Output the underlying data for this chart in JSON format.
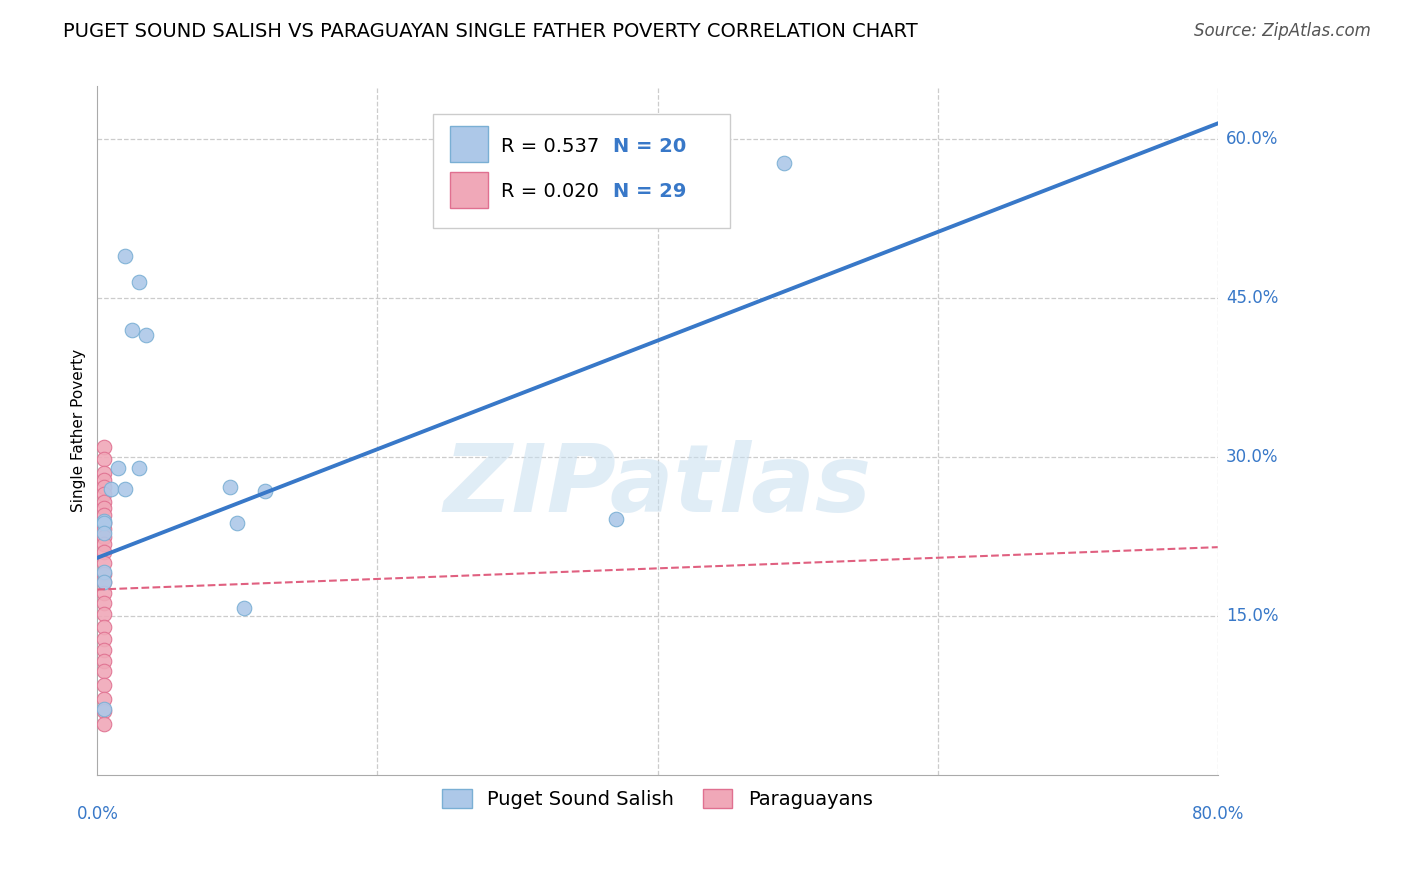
{
  "title": "PUGET SOUND SALISH VS PARAGUAYAN SINGLE FATHER POVERTY CORRELATION CHART",
  "source": "Source: ZipAtlas.com",
  "ylabel": "Single Father Poverty",
  "watermark": "ZIPatlas",
  "legend_blue_r": "R = 0.537",
  "legend_blue_n": "N = 20",
  "legend_pink_r": "R = 0.020",
  "legend_pink_n": "N = 29",
  "legend_blue_label": "Puget Sound Salish",
  "legend_pink_label": "Paraguayans",
  "xlim": [
    0.0,
    0.8
  ],
  "ylim": [
    0.0,
    0.65
  ],
  "ytick_vals": [
    0.15,
    0.3,
    0.45,
    0.6
  ],
  "ytick_labels": [
    "15.0%",
    "30.0%",
    "45.0%",
    "60.0%"
  ],
  "blue_dots_x": [
    0.02,
    0.03,
    0.025,
    0.035,
    0.03,
    0.015,
    0.01,
    0.02,
    0.005,
    0.095,
    0.12,
    0.1,
    0.49,
    0.005,
    0.005,
    0.105,
    0.37,
    0.005,
    0.005,
    0.005
  ],
  "blue_dots_y": [
    0.49,
    0.465,
    0.42,
    0.415,
    0.29,
    0.29,
    0.27,
    0.27,
    0.24,
    0.272,
    0.268,
    0.238,
    0.578,
    0.238,
    0.228,
    0.158,
    0.242,
    0.192,
    0.182,
    0.062
  ],
  "pink_dots_x": [
    0.005,
    0.005,
    0.005,
    0.005,
    0.005,
    0.005,
    0.005,
    0.005,
    0.005,
    0.005,
    0.005,
    0.005,
    0.005,
    0.005,
    0.005,
    0.005,
    0.005,
    0.005,
    0.005,
    0.005,
    0.005,
    0.005,
    0.005,
    0.005,
    0.005,
    0.005,
    0.005,
    0.005,
    0.005
  ],
  "pink_dots_y": [
    0.31,
    0.298,
    0.285,
    0.278,
    0.272,
    0.265,
    0.258,
    0.252,
    0.245,
    0.238,
    0.232,
    0.225,
    0.218,
    0.21,
    0.2,
    0.19,
    0.182,
    0.172,
    0.162,
    0.152,
    0.14,
    0.128,
    0.118,
    0.108,
    0.098,
    0.085,
    0.072,
    0.06,
    0.048
  ],
  "blue_line_x": [
    0.0,
    0.8
  ],
  "blue_line_y": [
    0.205,
    0.615
  ],
  "pink_line_x": [
    0.0,
    0.8
  ],
  "pink_line_y": [
    0.175,
    0.215
  ],
  "dot_size": 110,
  "blue_dot_color": "#adc8e8",
  "blue_dot_edge": "#7aafd4",
  "pink_dot_color": "#f0a8b8",
  "pink_dot_edge": "#e07090",
  "blue_line_color": "#3878c8",
  "pink_line_color": "#e06080",
  "grid_color": "#cccccc",
  "background_color": "#ffffff",
  "title_fontsize": 14,
  "axis_label_fontsize": 11,
  "tick_fontsize": 12,
  "legend_fontsize": 14,
  "source_fontsize": 12
}
